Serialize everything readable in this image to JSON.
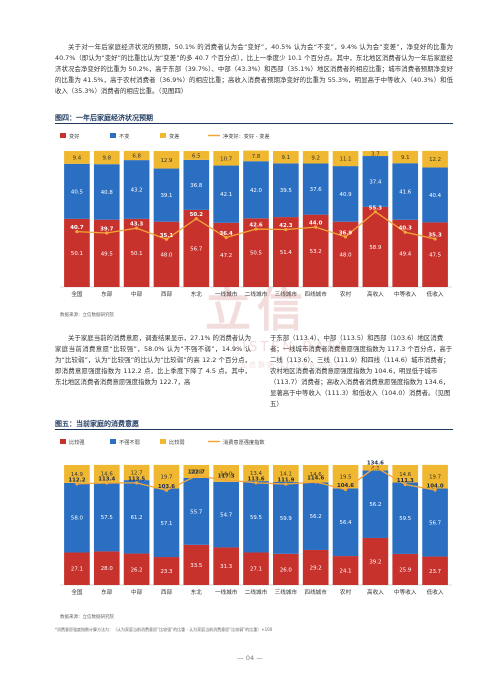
{
  "paragraphs": {
    "p1": "关于对一年后家庭经济状况的预期，50.1% 的消费者认为会“变好”，40.5% 认为会“不变”，9.4% 认为会“变差”，净变好的比重为 40.7%（即认为“变好”的比重比认为“变差”的多 40.7 个百分点），比上一季度少 10.1 个百分点。其中，东北地区消费者认为一年后家庭经济状况会净变好的比重为 50.2%，高于东部（39.7%）、中部（43.3%）和西部（35.1%）地区消费者的相应比重；城市消费者预期净变好的比重为 41.5%，高于农村消费者（36.9%）的相应比重；高收入消费者预期净变好的比重为 55.3%，明显高于中等收入（40.3%）和低收入（35.3%）消费者的相应比重。（见图四）",
    "p2": "关于家庭当前的消费意愿，调查结果显示，27.1% 的消费者认为家庭当前消费意愿“比较强”，58.0% 认为“不强不弱”，14.9% 认为“比较弱”，认为“比较强”的比认为“比较弱”的高 12.2 个百分点，即消费意愿强度指数为 112.2 点，比上季度下降了 4.5 点。其中，东北地区消费者消费意愿强度指数为 122.7，高",
    "p3": "于东部（113.4）、中部（113.5）和西部（103.6）地区消费者；一线城市消费者消费意愿强度指数为 117.3 个百分点，高于二线（113.6）、三线（111.9）和四线（114.6）城市消费者；农村地区消费者消费意愿强度指数为 104.6，明显低于城市（113.7）消费者；高收入消费者消费意愿强度指数为 134.6，显著高于中等收入（111.3）和低收入（104.0）消费者。（见图五）"
  },
  "figure4": {
    "title": "图四：一年后家庭经济状况预期",
    "source": "数据来源：立信数据研究院",
    "legend": [
      "变好",
      "不变",
      "变差",
      "净变好：变好 - 变差"
    ],
    "colors": {
      "good": "#c8322d",
      "same": "#2b6fc2",
      "bad": "#f0b830",
      "line": "#f2a73a"
    }
  },
  "figure5": {
    "title": "图五：当前家庭的消费意愿",
    "source": "数据来源：立信数据研究院",
    "legend": [
      "比较强",
      "不强不弱",
      "比较弱",
      "消费意愿强度指数"
    ],
    "colors": {
      "strong": "#c8322d",
      "neutral": "#2b6fc2",
      "weak": "#f0b830",
      "line": "#f2a73a"
    }
  },
  "chart_data": [
    {
      "type": "bar",
      "stacked": true,
      "categories": [
        "全国",
        "东部",
        "中部",
        "西部",
        "东北",
        "一线城市",
        "二线城市",
        "三线城市",
        "四线城市",
        "农村",
        "高收入",
        "中等收入",
        "低收入"
      ],
      "series": [
        {
          "name": "变好",
          "values": [
            50.1,
            49.5,
            50.1,
            48.0,
            56.7,
            47.2,
            50.5,
            51.4,
            53.2,
            48.0,
            58.9,
            49.4,
            47.5
          ]
        },
        {
          "name": "不变",
          "values": [
            40.5,
            40.8,
            43.2,
            39.1,
            36.8,
            42.1,
            42.0,
            39.5,
            37.6,
            40.9,
            37.4,
            41.6,
            40.4
          ]
        },
        {
          "name": "变差",
          "values": [
            9.4,
            9.8,
            6.8,
            12.9,
            6.5,
            10.7,
            7.8,
            9.1,
            9.2,
            11.1,
            3.7,
            9.1,
            12.2
          ]
        },
        {
          "name": "净变好：变好 - 变差",
          "type": "line",
          "values": [
            40.7,
            39.7,
            43.3,
            35.1,
            50.2,
            36.4,
            42.6,
            42.3,
            44.0,
            36.9,
            55.3,
            40.3,
            35.3
          ]
        }
      ],
      "title": "图四：一年后家庭经济状况预期",
      "legend_position": "top"
    },
    {
      "type": "bar",
      "stacked": true,
      "categories": [
        "全国",
        "东部",
        "中部",
        "西部",
        "东北",
        "一线城市",
        "二线城市",
        "三线城市",
        "四线城市",
        "农村",
        "高收入",
        "中等收入",
        "低收入"
      ],
      "series": [
        {
          "name": "比较强",
          "values": [
            27.1,
            28.0,
            26.2,
            23.3,
            33.5,
            31.3,
            27.1,
            26.0,
            29.2,
            24.1,
            39.2,
            25.9,
            23.7
          ]
        },
        {
          "name": "不强不弱",
          "values": [
            58.0,
            57.5,
            61.2,
            57.1,
            55.7,
            54.7,
            59.5,
            59.9,
            56.2,
            56.4,
            56.2,
            59.5,
            56.7
          ]
        },
        {
          "name": "比较弱",
          "values": [
            14.9,
            14.6,
            12.7,
            19.7,
            10.8,
            14.0,
            13.4,
            14.1,
            14.6,
            19.5,
            4.6,
            14.6,
            19.7
          ]
        },
        {
          "name": "消费意愿强度指数",
          "type": "line",
          "values": [
            112.2,
            113.4,
            113.5,
            103.6,
            122.7,
            117.3,
            113.6,
            111.9,
            114.6,
            104.6,
            134.6,
            111.3,
            104.0
          ]
        }
      ],
      "title": "图五：当前家庭的消费意愿",
      "legend_position": "top"
    }
  ],
  "note": "*消费意愿强度指数计算方法为：（认为家庭当前消费意愿“比较强”的比重 - 认为家庭当前消费意愿“比较弱”的比重）+100",
  "watermark": {
    "zh": "立信",
    "en": "LISTEN DATA",
    "sub": "立信数据 LISTEN DATA"
  },
  "page_number": "— 04 —"
}
